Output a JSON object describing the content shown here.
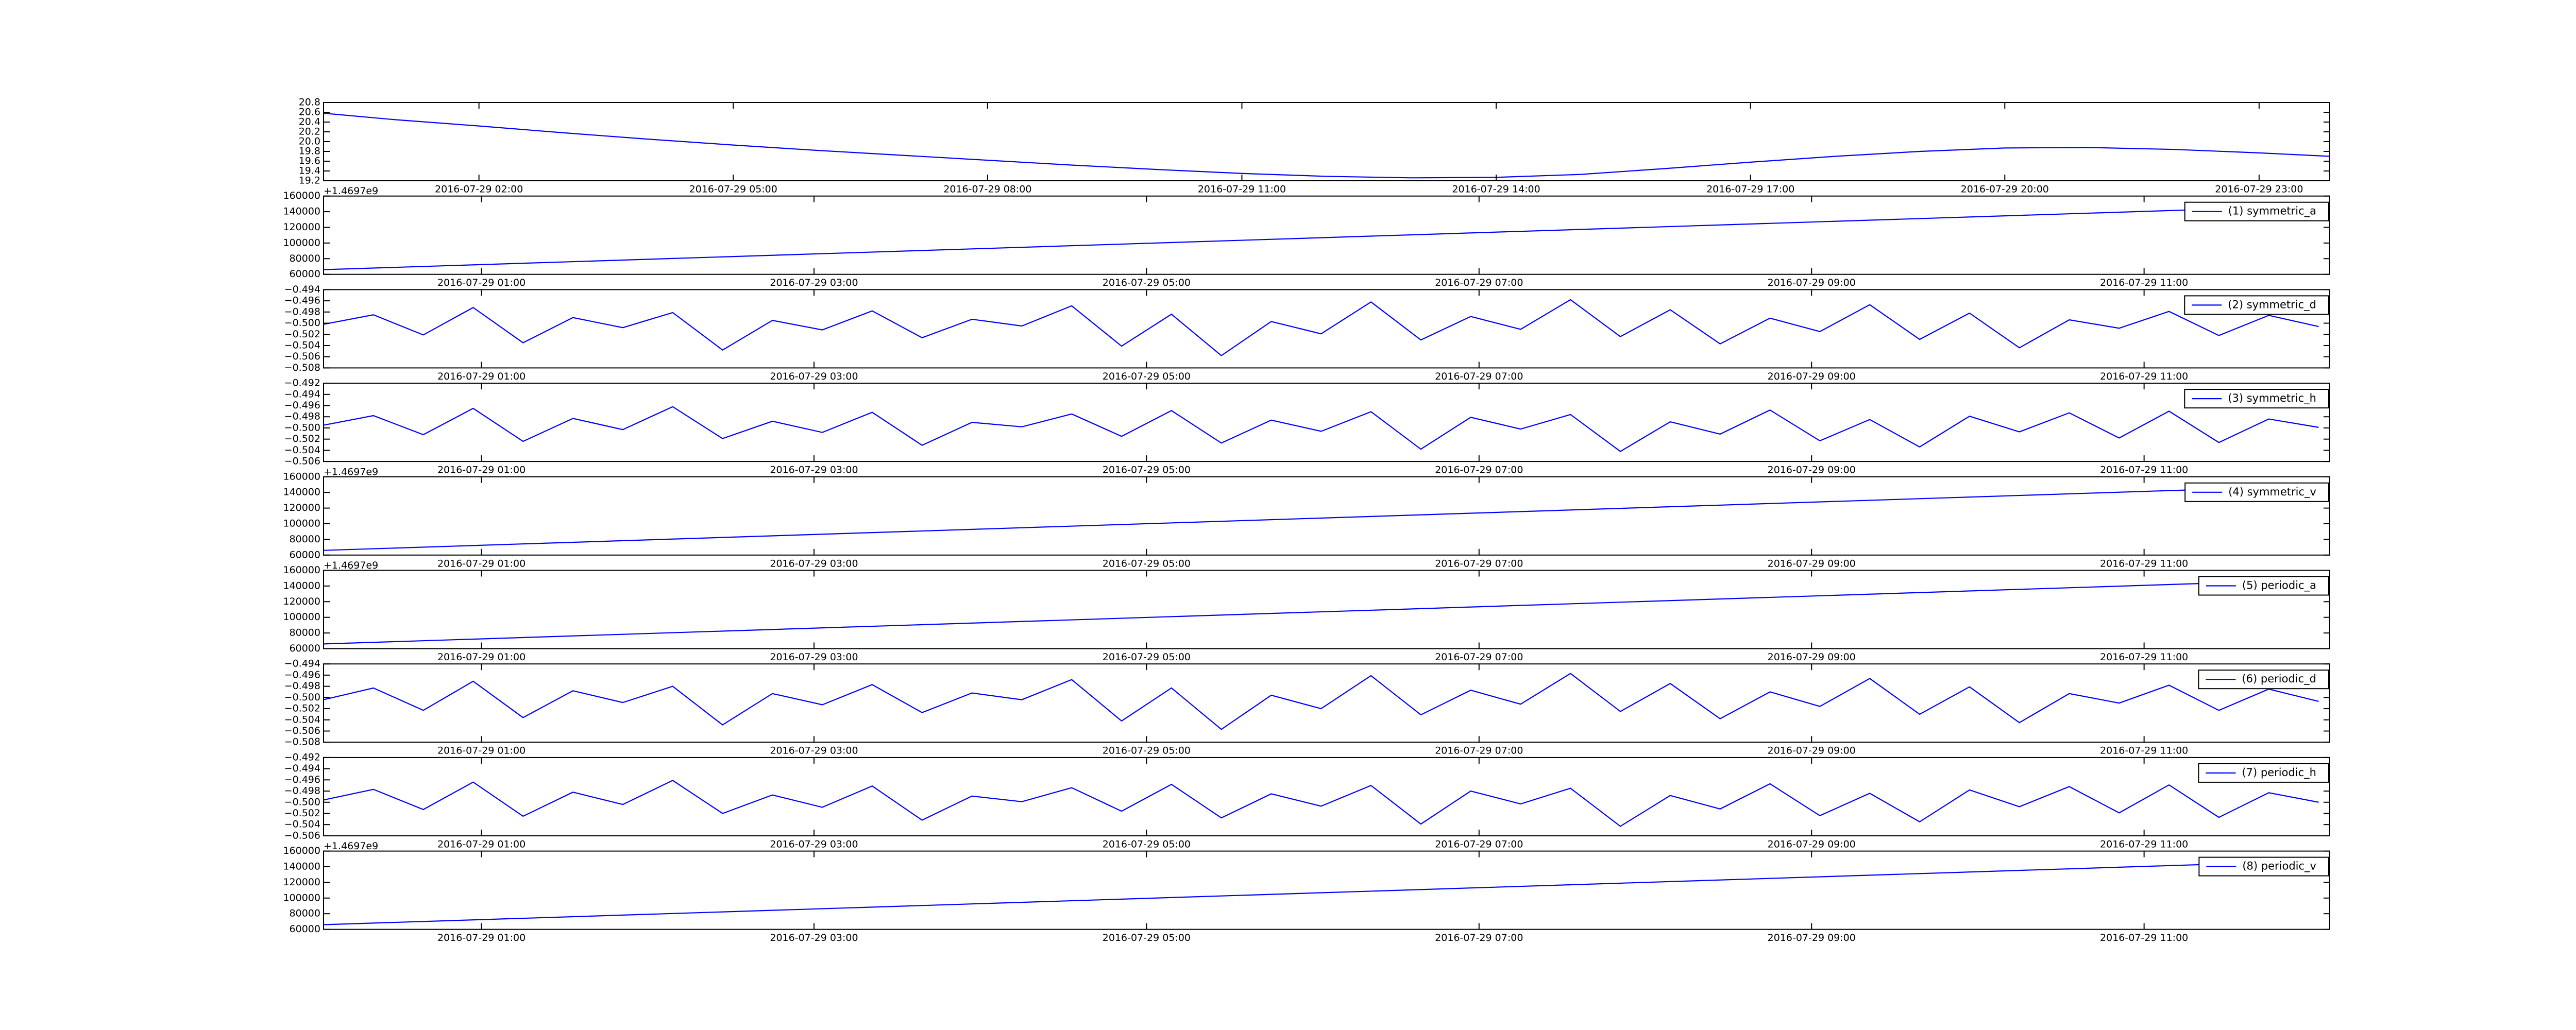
{
  "chart_data": [
    {
      "type": "line",
      "color": "#0000ff",
      "x": [
        "2016-07-29 00:10",
        "2016-07-29 01:00",
        "2016-07-29 02:00",
        "2016-07-29 03:00",
        "2016-07-29 04:00",
        "2016-07-29 05:00",
        "2016-07-29 06:00",
        "2016-07-29 07:00",
        "2016-07-29 08:00",
        "2016-07-29 09:00",
        "2016-07-29 10:00",
        "2016-07-29 11:00",
        "2016-07-29 12:00",
        "2016-07-29 13:00",
        "2016-07-29 14:00",
        "2016-07-29 15:00",
        "2016-07-29 16:00",
        "2016-07-29 17:00",
        "2016-07-29 18:00",
        "2016-07-29 19:00",
        "2016-07-29 20:00",
        "2016-07-29 21:00",
        "2016-07-29 22:00",
        "2016-07-29 23:00",
        "2016-07-29 23:50"
      ],
      "values": [
        20.58,
        20.45,
        20.32,
        20.18,
        20.05,
        19.93,
        19.82,
        19.72,
        19.62,
        19.52,
        19.43,
        19.35,
        19.29,
        19.26,
        19.27,
        19.33,
        19.45,
        19.58,
        19.7,
        19.8,
        19.87,
        19.88,
        19.84,
        19.77,
        19.7
      ],
      "xlim": [
        "2016-07-29 00:10",
        "2016-07-29 23:50"
      ],
      "xticks": [
        "2016-07-29 02:00",
        "2016-07-29 05:00",
        "2016-07-29 08:00",
        "2016-07-29 11:00",
        "2016-07-29 14:00",
        "2016-07-29 17:00",
        "2016-07-29 20:00",
        "2016-07-29 23:00"
      ],
      "ylim": [
        19.2,
        20.8
      ],
      "yticks": [
        19.2,
        19.4,
        19.6,
        19.8,
        {
          "value": 20,
          "label": "20.0"
        },
        20.2,
        20.4,
        20.6,
        20.8
      ]
    },
    {
      "type": "line",
      "offset_text": "+1.4697e9",
      "x": [
        "2016-07-29 00:03",
        "2016-07-29 12:07"
      ],
      "series": [
        {
          "name": "(1) symmetric_a",
          "color": "#0000ff",
          "values": [
            66000,
            148000
          ]
        }
      ],
      "xlim": [
        "2016-07-29 00:03",
        "2016-07-29 12:07"
      ],
      "xticks": [
        "2016-07-29 01:00",
        "2016-07-29 03:00",
        "2016-07-29 05:00",
        "2016-07-29 07:00",
        "2016-07-29 09:00",
        "2016-07-29 11:00"
      ],
      "ylim": [
        60000,
        160000
      ],
      "yticks": [
        60000,
        80000,
        100000,
        120000,
        140000,
        160000
      ]
    },
    {
      "type": "line",
      "x": [
        "2016-07-29 00:03",
        "2016-07-29 00:21",
        "2016-07-29 00:39",
        "2016-07-29 00:57",
        "2016-07-29 01:15",
        "2016-07-29 01:33",
        "2016-07-29 01:51",
        "2016-07-29 02:09",
        "2016-07-29 02:27",
        "2016-07-29 02:45",
        "2016-07-29 03:03",
        "2016-07-29 03:21",
        "2016-07-29 03:39",
        "2016-07-29 03:57",
        "2016-07-29 04:15",
        "2016-07-29 04:33",
        "2016-07-29 04:51",
        "2016-07-29 05:09",
        "2016-07-29 05:27",
        "2016-07-29 05:45",
        "2016-07-29 06:03",
        "2016-07-29 06:21",
        "2016-07-29 06:39",
        "2016-07-29 06:57",
        "2016-07-29 07:15",
        "2016-07-29 07:33",
        "2016-07-29 07:51",
        "2016-07-29 08:09",
        "2016-07-29 08:27",
        "2016-07-29 08:45",
        "2016-07-29 09:03",
        "2016-07-29 09:21",
        "2016-07-29 09:39",
        "2016-07-29 09:57",
        "2016-07-29 10:15",
        "2016-07-29 10:33",
        "2016-07-29 10:51",
        "2016-07-29 11:09",
        "2016-07-29 11:27",
        "2016-07-29 11:45",
        "2016-07-29 12:03"
      ],
      "series": [
        {
          "name": "(2) symmetric_d",
          "color": "#0000ff",
          "values": [
            -0.5002,
            -0.4985,
            -0.5021,
            -0.4972,
            -0.5035,
            -0.499,
            -0.5008,
            -0.4981,
            -0.5048,
            -0.4995,
            -0.5012,
            -0.4978,
            -0.5026,
            -0.4993,
            -0.5005,
            -0.4969,
            -0.5041,
            -0.4984,
            -0.5058,
            -0.4997,
            -0.5019,
            -0.4962,
            -0.503,
            -0.4988,
            -0.5011,
            -0.4958,
            -0.5024,
            -0.4976,
            -0.5037,
            -0.4991,
            -0.5015,
            -0.4967,
            -0.5029,
            -0.4982,
            -0.5044,
            -0.4994,
            -0.5009,
            -0.4979,
            -0.5022,
            -0.4986,
            -0.5006
          ]
        }
      ],
      "xlim": [
        "2016-07-29 00:03",
        "2016-07-29 12:07"
      ],
      "xticks": [
        "2016-07-29 01:00",
        "2016-07-29 03:00",
        "2016-07-29 05:00",
        "2016-07-29 07:00",
        "2016-07-29 09:00",
        "2016-07-29 11:00"
      ],
      "ylim": [
        -0.508,
        -0.494
      ],
      "yticks": [
        {
          "value": -0.508,
          "label": "−0.508"
        },
        {
          "value": -0.506,
          "label": "−0.506"
        },
        {
          "value": -0.504,
          "label": "−0.504"
        },
        {
          "value": -0.502,
          "label": "−0.502"
        },
        {
          "value": -0.5,
          "label": "−0.500"
        },
        {
          "value": -0.498,
          "label": "−0.498"
        },
        {
          "value": -0.496,
          "label": "−0.496"
        },
        {
          "value": -0.494,
          "label": "−0.494"
        }
      ]
    },
    {
      "type": "line",
      "x": [
        "2016-07-29 00:03",
        "2016-07-29 00:21",
        "2016-07-29 00:39",
        "2016-07-29 00:57",
        "2016-07-29 01:15",
        "2016-07-29 01:33",
        "2016-07-29 01:51",
        "2016-07-29 02:09",
        "2016-07-29 02:27",
        "2016-07-29 02:45",
        "2016-07-29 03:03",
        "2016-07-29 03:21",
        "2016-07-29 03:39",
        "2016-07-29 03:57",
        "2016-07-29 04:15",
        "2016-07-29 04:33",
        "2016-07-29 04:51",
        "2016-07-29 05:09",
        "2016-07-29 05:27",
        "2016-07-29 05:45",
        "2016-07-29 06:03",
        "2016-07-29 06:21",
        "2016-07-29 06:39",
        "2016-07-29 06:57",
        "2016-07-29 07:15",
        "2016-07-29 07:33",
        "2016-07-29 07:51",
        "2016-07-29 08:09",
        "2016-07-29 08:27",
        "2016-07-29 08:45",
        "2016-07-29 09:03",
        "2016-07-29 09:21",
        "2016-07-29 09:39",
        "2016-07-29 09:57",
        "2016-07-29 10:15",
        "2016-07-29 10:33",
        "2016-07-29 10:51",
        "2016-07-29 11:09",
        "2016-07-29 11:27",
        "2016-07-29 11:45",
        "2016-07-29 12:03"
      ],
      "series": [
        {
          "name": "(3) symmetric_h",
          "color": "#0000ff",
          "values": [
            -0.4995,
            -0.4978,
            -0.5012,
            -0.4965,
            -0.5024,
            -0.4983,
            -0.5003,
            -0.4962,
            -0.5019,
            -0.4988,
            -0.5008,
            -0.4972,
            -0.5031,
            -0.499,
            -0.4998,
            -0.4975,
            -0.5015,
            -0.4969,
            -0.5027,
            -0.4986,
            -0.5006,
            -0.4971,
            -0.5038,
            -0.4981,
            -0.5002,
            -0.4976,
            -0.5042,
            -0.4989,
            -0.5011,
            -0.4968,
            -0.5023,
            -0.4985,
            -0.5034,
            -0.4979,
            -0.5007,
            -0.4973,
            -0.5018,
            -0.497,
            -0.5026,
            -0.4984,
            -0.4999
          ]
        }
      ],
      "xlim": [
        "2016-07-29 00:03",
        "2016-07-29 12:07"
      ],
      "xticks": [
        "2016-07-29 01:00",
        "2016-07-29 03:00",
        "2016-07-29 05:00",
        "2016-07-29 07:00",
        "2016-07-29 09:00",
        "2016-07-29 11:00"
      ],
      "ylim": [
        -0.506,
        -0.492
      ],
      "yticks": [
        {
          "value": -0.506,
          "label": "−0.506"
        },
        {
          "value": -0.504,
          "label": "−0.504"
        },
        {
          "value": -0.502,
          "label": "−0.502"
        },
        {
          "value": -0.5,
          "label": "−0.500"
        },
        {
          "value": -0.498,
          "label": "−0.498"
        },
        {
          "value": -0.496,
          "label": "−0.496"
        },
        {
          "value": -0.494,
          "label": "−0.494"
        },
        {
          "value": -0.492,
          "label": "−0.492"
        }
      ]
    },
    {
      "type": "line",
      "offset_text": "+1.4697e9",
      "x": [
        "2016-07-29 00:03",
        "2016-07-29 12:07"
      ],
      "series": [
        {
          "name": "(4) symmetric_v",
          "color": "#0000ff",
          "values": [
            66000,
            149000
          ]
        }
      ],
      "xlim": [
        "2016-07-29 00:03",
        "2016-07-29 12:07"
      ],
      "xticks": [
        "2016-07-29 01:00",
        "2016-07-29 03:00",
        "2016-07-29 05:00",
        "2016-07-29 07:00",
        "2016-07-29 09:00",
        "2016-07-29 11:00"
      ],
      "ylim": [
        60000,
        160000
      ],
      "yticks": [
        60000,
        80000,
        100000,
        120000,
        140000,
        160000
      ]
    },
    {
      "type": "line",
      "offset_text": "+1.4697e9",
      "x": [
        "2016-07-29 00:03",
        "2016-07-29 12:07"
      ],
      "series": [
        {
          "name": "(5) periodic_a",
          "color": "#0000ff",
          "values": [
            66000,
            148500
          ]
        }
      ],
      "xlim": [
        "2016-07-29 00:03",
        "2016-07-29 12:07"
      ],
      "xticks": [
        "2016-07-29 01:00",
        "2016-07-29 03:00",
        "2016-07-29 05:00",
        "2016-07-29 07:00",
        "2016-07-29 09:00",
        "2016-07-29 11:00"
      ],
      "ylim": [
        60000,
        160000
      ],
      "yticks": [
        60000,
        80000,
        100000,
        120000,
        140000,
        160000
      ]
    },
    {
      "type": "line",
      "x": [
        "2016-07-29 00:03",
        "2016-07-29 00:21",
        "2016-07-29 00:39",
        "2016-07-29 00:57",
        "2016-07-29 01:15",
        "2016-07-29 01:33",
        "2016-07-29 01:51",
        "2016-07-29 02:09",
        "2016-07-29 02:27",
        "2016-07-29 02:45",
        "2016-07-29 03:03",
        "2016-07-29 03:21",
        "2016-07-29 03:39",
        "2016-07-29 03:57",
        "2016-07-29 04:15",
        "2016-07-29 04:33",
        "2016-07-29 04:51",
        "2016-07-29 05:09",
        "2016-07-29 05:27",
        "2016-07-29 05:45",
        "2016-07-29 06:03",
        "2016-07-29 06:21",
        "2016-07-29 06:39",
        "2016-07-29 06:57",
        "2016-07-29 07:15",
        "2016-07-29 07:33",
        "2016-07-29 07:51",
        "2016-07-29 08:09",
        "2016-07-29 08:27",
        "2016-07-29 08:45",
        "2016-07-29 09:03",
        "2016-07-29 09:21",
        "2016-07-29 09:39",
        "2016-07-29 09:57",
        "2016-07-29 10:15",
        "2016-07-29 10:33",
        "2016-07-29 10:51",
        "2016-07-29 11:09",
        "2016-07-29 11:27",
        "2016-07-29 11:45",
        "2016-07-29 12:03"
      ],
      "series": [
        {
          "name": "(6) periodic_d",
          "color": "#0000ff",
          "values": [
            -0.5004,
            -0.4983,
            -0.5023,
            -0.4971,
            -0.5036,
            -0.4988,
            -0.5009,
            -0.498,
            -0.5049,
            -0.4993,
            -0.5013,
            -0.4977,
            -0.5027,
            -0.4992,
            -0.5004,
            -0.4968,
            -0.5042,
            -0.4983,
            -0.5057,
            -0.4996,
            -0.502,
            -0.4961,
            -0.5031,
            -0.4987,
            -0.5012,
            -0.4957,
            -0.5025,
            -0.4975,
            -0.5038,
            -0.499,
            -0.5016,
            -0.4966,
            -0.503,
            -0.4981,
            -0.5045,
            -0.4993,
            -0.501,
            -0.4978,
            -0.5023,
            -0.4985,
            -0.5007
          ]
        }
      ],
      "xlim": [
        "2016-07-29 00:03",
        "2016-07-29 12:07"
      ],
      "xticks": [
        "2016-07-29 01:00",
        "2016-07-29 03:00",
        "2016-07-29 05:00",
        "2016-07-29 07:00",
        "2016-07-29 09:00",
        "2016-07-29 11:00"
      ],
      "ylim": [
        -0.508,
        -0.494
      ],
      "yticks": [
        {
          "value": -0.508,
          "label": "−0.508"
        },
        {
          "value": -0.506,
          "label": "−0.506"
        },
        {
          "value": -0.504,
          "label": "−0.504"
        },
        {
          "value": -0.502,
          "label": "−0.502"
        },
        {
          "value": -0.5,
          "label": "−0.500"
        },
        {
          "value": -0.498,
          "label": "−0.498"
        },
        {
          "value": -0.496,
          "label": "−0.496"
        },
        {
          "value": -0.494,
          "label": "−0.494"
        }
      ]
    },
    {
      "type": "line",
      "x": [
        "2016-07-29 00:03",
        "2016-07-29 00:21",
        "2016-07-29 00:39",
        "2016-07-29 00:57",
        "2016-07-29 01:15",
        "2016-07-29 01:33",
        "2016-07-29 01:51",
        "2016-07-29 02:09",
        "2016-07-29 02:27",
        "2016-07-29 02:45",
        "2016-07-29 03:03",
        "2016-07-29 03:21",
        "2016-07-29 03:39",
        "2016-07-29 03:57",
        "2016-07-29 04:15",
        "2016-07-29 04:33",
        "2016-07-29 04:51",
        "2016-07-29 05:09",
        "2016-07-29 05:27",
        "2016-07-29 05:45",
        "2016-07-29 06:03",
        "2016-07-29 06:21",
        "2016-07-29 06:39",
        "2016-07-29 06:57",
        "2016-07-29 07:15",
        "2016-07-29 07:33",
        "2016-07-29 07:51",
        "2016-07-29 08:09",
        "2016-07-29 08:27",
        "2016-07-29 08:45",
        "2016-07-29 09:03",
        "2016-07-29 09:21",
        "2016-07-29 09:39",
        "2016-07-29 09:57",
        "2016-07-29 10:15",
        "2016-07-29 10:33",
        "2016-07-29 10:51",
        "2016-07-29 11:09",
        "2016-07-29 11:27",
        "2016-07-29 11:45",
        "2016-07-29 12:03"
      ],
      "series": [
        {
          "name": "(7) periodic_h",
          "color": "#0000ff",
          "values": [
            -0.4996,
            -0.4977,
            -0.5013,
            -0.4964,
            -0.5025,
            -0.4982,
            -0.5004,
            -0.4961,
            -0.502,
            -0.4987,
            -0.5009,
            -0.4971,
            -0.5032,
            -0.4989,
            -0.4999,
            -0.4974,
            -0.5016,
            -0.4968,
            -0.5028,
            -0.4985,
            -0.5007,
            -0.497,
            -0.5039,
            -0.498,
            -0.5003,
            -0.4975,
            -0.5043,
            -0.4988,
            -0.5012,
            -0.4967,
            -0.5024,
            -0.4984,
            -0.5035,
            -0.4978,
            -0.5008,
            -0.4972,
            -0.5019,
            -0.4969,
            -0.5027,
            -0.4983,
            -0.5
          ]
        }
      ],
      "xlim": [
        "2016-07-29 00:03",
        "2016-07-29 12:07"
      ],
      "xticks": [
        "2016-07-29 01:00",
        "2016-07-29 03:00",
        "2016-07-29 05:00",
        "2016-07-29 07:00",
        "2016-07-29 09:00",
        "2016-07-29 11:00"
      ],
      "ylim": [
        -0.506,
        -0.492
      ],
      "yticks": [
        {
          "value": -0.506,
          "label": "−0.506"
        },
        {
          "value": -0.504,
          "label": "−0.504"
        },
        {
          "value": -0.502,
          "label": "−0.502"
        },
        {
          "value": -0.5,
          "label": "−0.500"
        },
        {
          "value": -0.498,
          "label": "−0.498"
        },
        {
          "value": -0.496,
          "label": "−0.496"
        },
        {
          "value": -0.494,
          "label": "−0.494"
        },
        {
          "value": -0.492,
          "label": "−0.492"
        }
      ]
    },
    {
      "type": "line",
      "offset_text": "+1.4697e9",
      "x": [
        "2016-07-29 00:03",
        "2016-07-29 12:07"
      ],
      "series": [
        {
          "name": "(8) periodic_v",
          "color": "#0000ff",
          "values": [
            66000,
            148000
          ]
        }
      ],
      "xlim": [
        "2016-07-29 00:03",
        "2016-07-29 12:07"
      ],
      "xticks": [
        "2016-07-29 01:00",
        "2016-07-29 03:00",
        "2016-07-29 05:00",
        "2016-07-29 07:00",
        "2016-07-29 09:00",
        "2016-07-29 11:00"
      ],
      "ylim": [
        60000,
        160000
      ],
      "yticks": [
        60000,
        80000,
        100000,
        120000,
        140000,
        160000
      ]
    }
  ]
}
